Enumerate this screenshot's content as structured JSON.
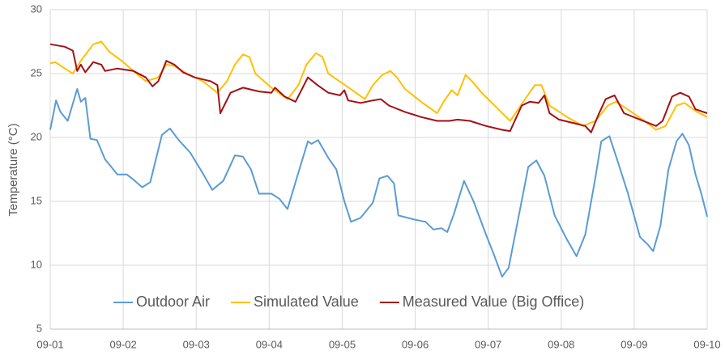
{
  "chart_data": {
    "type": "line",
    "y_label": "Temperature (°C)",
    "xlim": [
      0,
      9
    ],
    "xticks": [
      {
        "value": 0,
        "label": "09-01"
      },
      {
        "value": 1,
        "label": "09-02"
      },
      {
        "value": 2,
        "label": "09-03"
      },
      {
        "value": 3,
        "label": "09-04"
      },
      {
        "value": 4,
        "label": "09-05"
      },
      {
        "value": 5,
        "label": "09-06"
      },
      {
        "value": 6,
        "label": "09-07"
      },
      {
        "value": 7,
        "label": "09-08"
      },
      {
        "value": 8,
        "label": "09-09"
      },
      {
        "value": 9,
        "label": "09-10"
      }
    ],
    "ylim": [
      5,
      30
    ],
    "yticks": [
      5,
      10,
      15,
      20,
      25,
      30
    ],
    "grid": true,
    "legend": "bottom",
    "series": [
      {
        "name": "Outdoor Air",
        "color": "#5b9bd5",
        "x": [
          0,
          0.08,
          0.14,
          0.24,
          0.37,
          0.42,
          0.48,
          0.55,
          0.64,
          0.75,
          0.92,
          1.05,
          1.14,
          1.26,
          1.37,
          1.53,
          1.64,
          1.76,
          1.92,
          2.09,
          2.22,
          2.37,
          2.53,
          2.64,
          2.75,
          2.86,
          3.03,
          3.14,
          3.25,
          3.36,
          3.53,
          3.58,
          3.67,
          3.81,
          3.92,
          4.03,
          4.12,
          4.25,
          4.42,
          4.51,
          4.62,
          4.71,
          4.77,
          4.97,
          5.14,
          5.25,
          5.36,
          5.44,
          5.53,
          5.67,
          5.8,
          5.97,
          6.08,
          6.19,
          6.28,
          6.41,
          6.55,
          6.66,
          6.77,
          6.91,
          7.08,
          7.21,
          7.33,
          7.47,
          7.55,
          7.66,
          7.77,
          7.91,
          8.08,
          8.19,
          8.26,
          8.36,
          8.47,
          8.58,
          8.66,
          8.75,
          8.84,
          8.92,
          9
        ],
        "values": [
          20.6,
          22.9,
          22,
          21.3,
          23.8,
          22.8,
          23.1,
          19.9,
          19.8,
          18.3,
          17.1,
          17.1,
          16.7,
          16.1,
          16.5,
          20.2,
          20.7,
          19.8,
          18.8,
          17.2,
          15.9,
          16.6,
          18.6,
          18.5,
          17.5,
          15.6,
          15.6,
          15.2,
          14.4,
          16.5,
          19.7,
          19.5,
          19.8,
          18.4,
          17.5,
          15,
          13.4,
          13.7,
          14.9,
          16.8,
          17,
          16.4,
          13.9,
          13.6,
          13.4,
          12.8,
          12.9,
          12.6,
          14,
          16.6,
          15,
          12.4,
          10.8,
          9.1,
          9.8,
          13.6,
          17.7,
          18.2,
          17,
          13.9,
          12,
          10.7,
          12.4,
          16.9,
          19.7,
          20.1,
          18.2,
          15.7,
          12.2,
          11.6,
          11.1,
          13.1,
          17.5,
          19.7,
          20.3,
          19.4,
          17.1,
          15.6,
          13.8
        ]
      },
      {
        "name": "Simulated Value",
        "color": "#ffc000",
        "x": [
          0,
          0.07,
          0.2,
          0.31,
          0.42,
          0.59,
          0.7,
          0.81,
          0.98,
          1.14,
          1.31,
          1.48,
          1.59,
          1.7,
          1.87,
          2.09,
          2.29,
          2.42,
          2.53,
          2.64,
          2.73,
          2.81,
          3.03,
          3.25,
          3.4,
          3.51,
          3.64,
          3.73,
          3.81,
          4.09,
          4.31,
          4.42,
          4.55,
          4.66,
          4.75,
          4.86,
          5.08,
          5.3,
          5.39,
          5.5,
          5.58,
          5.69,
          5.78,
          5.91,
          6.14,
          6.3,
          6.41,
          6.53,
          6.64,
          6.73,
          6.84,
          7.08,
          7.3,
          7.47,
          7.64,
          7.75,
          7.91,
          8.14,
          8.3,
          8.43,
          8.58,
          8.69,
          8.86,
          9
        ],
        "values": [
          25.8,
          25.9,
          25.4,
          25,
          26,
          27.3,
          27.5,
          26.7,
          26,
          25.2,
          24.4,
          24.7,
          25.7,
          25.6,
          25,
          24.4,
          23.5,
          24.4,
          25.7,
          26.5,
          26.3,
          25,
          23.9,
          23,
          24.1,
          25.7,
          26.6,
          26.3,
          25,
          23.9,
          23,
          24.1,
          24.9,
          25.2,
          24.7,
          23.8,
          22.8,
          21.9,
          22.8,
          23.7,
          23.3,
          24.9,
          24.4,
          23.5,
          22.2,
          21.3,
          22.2,
          23.2,
          24.1,
          24.1,
          22.5,
          21.6,
          20.9,
          21.3,
          22.5,
          22.8,
          22.2,
          21.3,
          20.6,
          20.9,
          22.5,
          22.7,
          22,
          21.6
        ]
      },
      {
        "name": "Measured Value (Big Office)",
        "color": "#a50f15",
        "x": [
          0,
          0.2,
          0.31,
          0.37,
          0.42,
          0.48,
          0.59,
          0.7,
          0.75,
          0.92,
          1.14,
          1.31,
          1.4,
          1.48,
          1.59,
          1.7,
          1.82,
          1.98,
          2.2,
          2.29,
          2.33,
          2.47,
          2.64,
          2.86,
          3.03,
          3.08,
          3.21,
          3.36,
          3.53,
          3.66,
          3.81,
          3.97,
          4.03,
          4.08,
          4.25,
          4.42,
          4.53,
          4.64,
          4.86,
          5.08,
          5.3,
          5.47,
          5.58,
          5.75,
          5.97,
          6.19,
          6.3,
          6.46,
          6.57,
          6.69,
          6.77,
          6.84,
          6.97,
          7.19,
          7.33,
          7.41,
          7.52,
          7.61,
          7.73,
          7.86,
          8.08,
          8.3,
          8.39,
          8.52,
          8.63,
          8.75,
          8.84,
          9
        ],
        "values": [
          27.3,
          27.1,
          26.8,
          25.2,
          25.7,
          25.1,
          25.9,
          25.7,
          25.2,
          25.4,
          25.2,
          24.7,
          24,
          24.4,
          26,
          25.7,
          25.1,
          24.7,
          24.4,
          24.1,
          21.9,
          23.5,
          23.9,
          23.6,
          23.5,
          23.9,
          23.2,
          22.8,
          24.7,
          24.1,
          23.5,
          23.3,
          23.7,
          22.9,
          22.7,
          22.9,
          23,
          22.5,
          22,
          21.6,
          21.3,
          21.3,
          21.4,
          21.3,
          20.9,
          20.6,
          20.5,
          22.5,
          22.8,
          22.7,
          23.3,
          21.9,
          21.4,
          21.1,
          20.9,
          20.4,
          21.9,
          23,
          23.3,
          21.9,
          21.4,
          20.9,
          21.3,
          23.2,
          23.5,
          23.2,
          22.2,
          21.9
        ]
      }
    ]
  }
}
